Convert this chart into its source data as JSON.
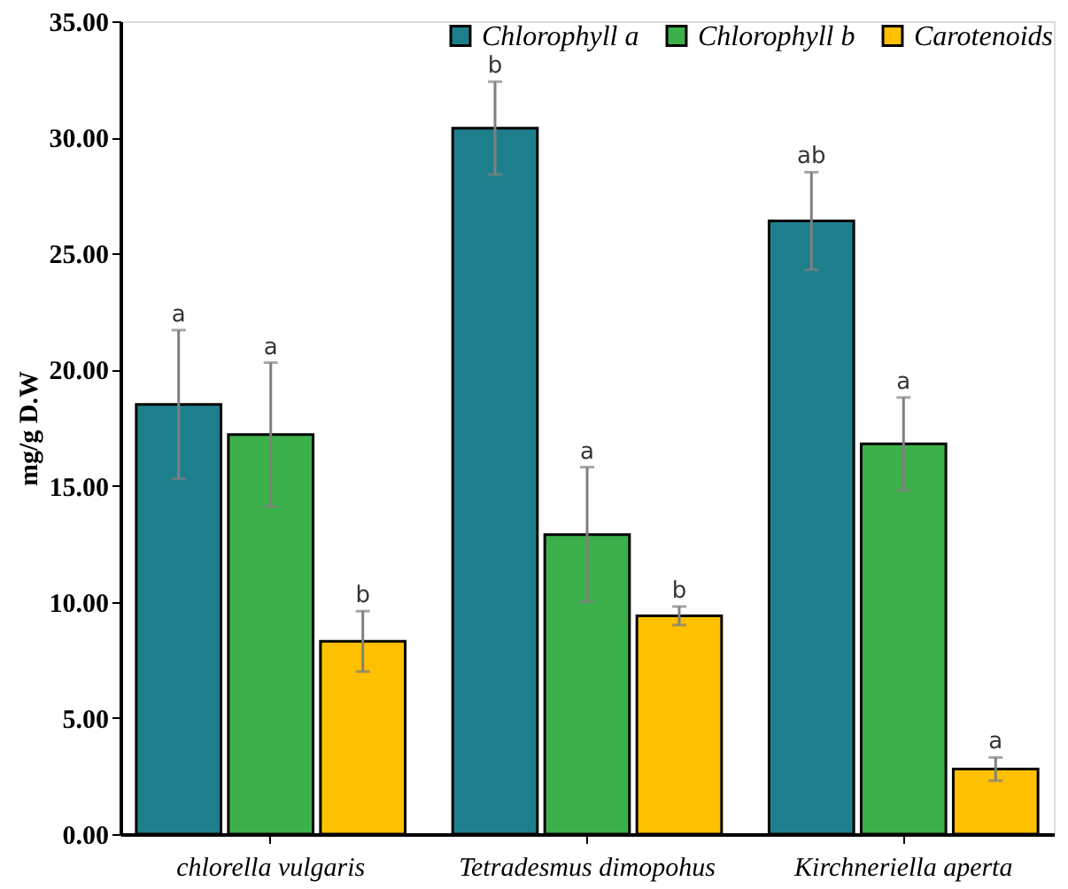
{
  "chart_data": {
    "type": "bar",
    "ylabel": "mg/g D.W",
    "categories": [
      "chlorella vulgaris",
      "Tetradesmus dimopohus",
      "Kirchneriella aperta"
    ],
    "series": [
      {
        "name": "Chlorophyll a",
        "color": "#1e7f8c",
        "values": [
          18.5,
          30.4,
          26.4
        ],
        "errors": [
          3.2,
          2.0,
          2.1
        ]
      },
      {
        "name": "Chlorophyll b",
        "color": "#3cb04a",
        "values": [
          17.2,
          12.9,
          16.8
        ],
        "errors": [
          3.1,
          2.9,
          2.0
        ]
      },
      {
        "name": "Carotenoids",
        "color": "#ffc000",
        "values": [
          8.3,
          9.4,
          2.8
        ],
        "errors": [
          1.3,
          0.4,
          0.5
        ]
      }
    ],
    "ylim": [
      0,
      35
    ],
    "yticks": [
      {
        "value": 0,
        "label": "0.00"
      },
      {
        "value": 5,
        "label": "5.00"
      },
      {
        "value": 10,
        "label": "10.00"
      },
      {
        "value": 15,
        "label": "15.00"
      },
      {
        "value": 20,
        "label": "20.00"
      },
      {
        "value": 25,
        "label": "25.00"
      },
      {
        "value": 30,
        "label": "30.00"
      },
      {
        "value": 35,
        "label": "35.00"
      }
    ],
    "annotations": [
      "a",
      "a",
      "b",
      "b",
      "a",
      "b",
      "ab",
      "a",
      "a"
    ],
    "legend": "top right",
    "grid": false
  }
}
